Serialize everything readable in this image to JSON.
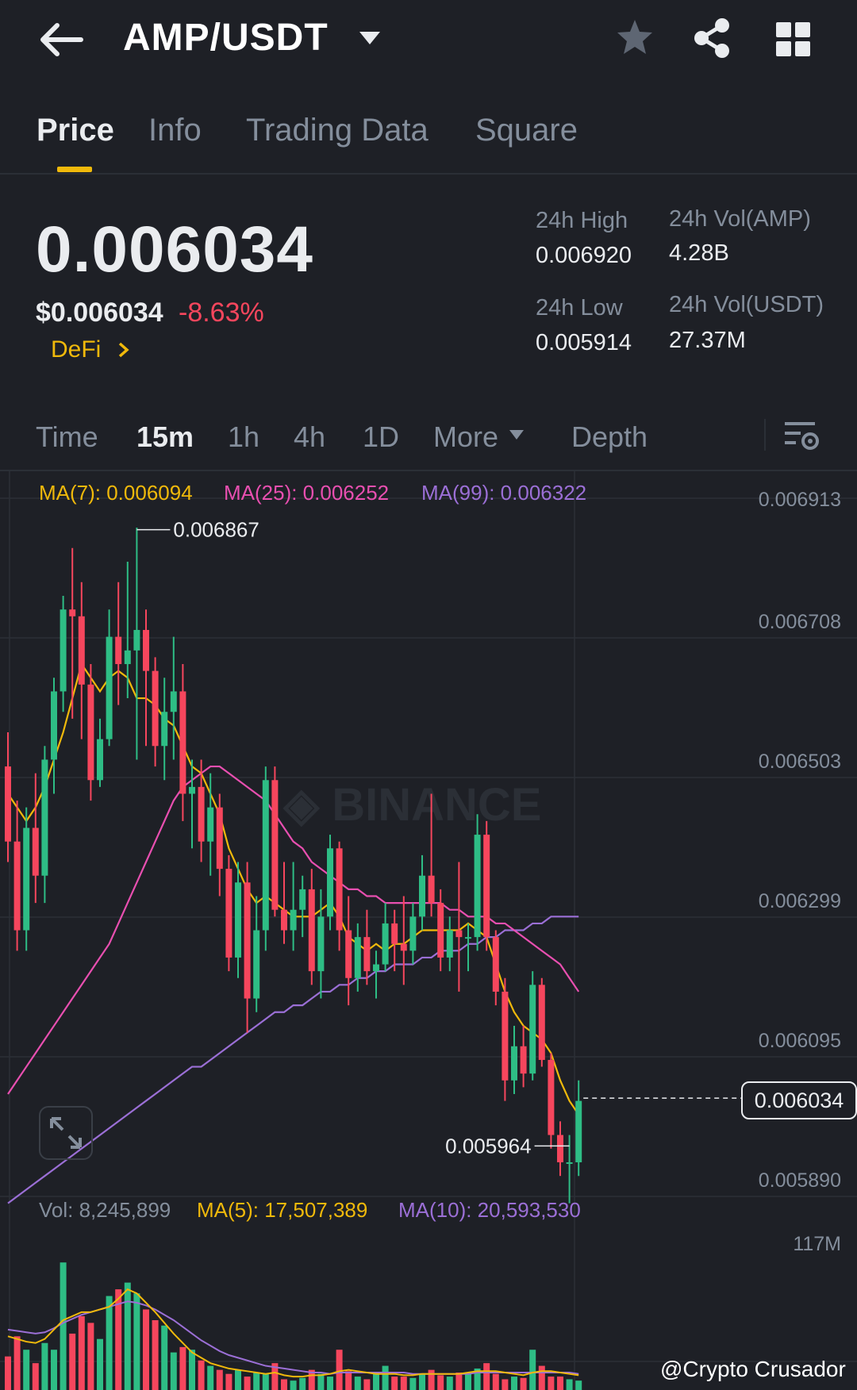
{
  "header": {
    "pair": "AMP/USDT",
    "icons": [
      "back-arrow-icon",
      "caret-down-icon",
      "star-icon",
      "share-icon",
      "grid-icon"
    ]
  },
  "tabs": [
    {
      "label": "Price",
      "active": true
    },
    {
      "label": "Info",
      "active": false
    },
    {
      "label": "Trading Data",
      "active": false
    },
    {
      "label": "Square",
      "active": false
    }
  ],
  "summary": {
    "last_price": "0.006034",
    "usd_price": "$0.006034",
    "change": "-8.63%",
    "sector": "DeFi",
    "high_label": "24h High",
    "high_value": "0.006920",
    "low_label": "24h Low",
    "low_value": "0.005914",
    "vol_amp_label": "24h Vol(AMP)",
    "vol_amp_value": "4.28B",
    "vol_usdt_label": "24h Vol(USDT)",
    "vol_usdt_value": "27.37M"
  },
  "timeframes": [
    {
      "label": "Time",
      "active": false
    },
    {
      "label": "15m",
      "active": true
    },
    {
      "label": "1h",
      "active": false
    },
    {
      "label": "4h",
      "active": false
    },
    {
      "label": "1D",
      "active": false
    },
    {
      "label": "More",
      "active": false
    },
    {
      "label": "Depth",
      "active": false
    }
  ],
  "indicators": {
    "ma7": "MA(7): 0.006094",
    "ma25": "MA(25): 0.006252",
    "ma99": "MA(99): 0.006322",
    "vol": "Vol: 8,245,899",
    "vma5": "MA(5): 17,507,389",
    "vma10": "MA(10): 20,593,530"
  },
  "colors": {
    "up": "#2ebd85",
    "down": "#f6465d",
    "ma7": "#f0b90b",
    "ma25": "#e84fb0",
    "ma99": "#9b6fd6",
    "accent": "#f0b90b"
  },
  "credit": "@Crypto Crusador",
  "chart_data": {
    "type": "candlestick",
    "y_ticks": [
      "0.006913",
      "0.006708",
      "0.006503",
      "0.006299",
      "0.006095",
      "0.005890"
    ],
    "ylim": [
      0.00589,
      0.006913
    ],
    "high_marker": "0.006867",
    "low_marker": "0.005964",
    "current_price": "0.006034",
    "volume_axis_top": "117M",
    "candles": [
      [
        0.00652,
        0.00657,
        0.00638,
        0.00641
      ],
      [
        0.00641,
        0.00647,
        0.00625,
        0.00628
      ],
      [
        0.00628,
        0.00646,
        0.00625,
        0.00643
      ],
      [
        0.00643,
        0.00651,
        0.00632,
        0.00636
      ],
      [
        0.00636,
        0.00655,
        0.00632,
        0.00653
      ],
      [
        0.00653,
        0.00665,
        0.00648,
        0.00663
      ],
      [
        0.00663,
        0.00677,
        0.0066,
        0.00675
      ],
      [
        0.00675,
        0.00684,
        0.00659,
        0.00674
      ],
      [
        0.00674,
        0.00679,
        0.00656,
        0.00664
      ],
      [
        0.00664,
        0.00667,
        0.00647,
        0.0065
      ],
      [
        0.0065,
        0.00659,
        0.00649,
        0.00656
      ],
      [
        0.00656,
        0.00675,
        0.00655,
        0.00671
      ],
      [
        0.00671,
        0.00679,
        0.00661,
        0.00667
      ],
      [
        0.00667,
        0.00682,
        0.00662,
        0.00669
      ],
      [
        0.00669,
        0.00687,
        0.00653,
        0.00672
      ],
      [
        0.00672,
        0.00675,
        0.00655,
        0.00666
      ],
      [
        0.00666,
        0.00668,
        0.00652,
        0.00655
      ],
      [
        0.00655,
        0.00665,
        0.0065,
        0.0066
      ],
      [
        0.0066,
        0.00671,
        0.00653,
        0.00663
      ],
      [
        0.00663,
        0.00667,
        0.00644,
        0.00648
      ],
      [
        0.00648,
        0.00653,
        0.0064,
        0.00649
      ],
      [
        0.00649,
        0.00653,
        0.00638,
        0.00641
      ],
      [
        0.00641,
        0.00651,
        0.00636,
        0.00646
      ],
      [
        0.00646,
        0.00648,
        0.00633,
        0.00637
      ],
      [
        0.00637,
        0.00639,
        0.00622,
        0.00624
      ],
      [
        0.00624,
        0.00638,
        0.00621,
        0.00635
      ],
      [
        0.00635,
        0.00638,
        0.00613,
        0.00618
      ],
      [
        0.00618,
        0.00633,
        0.00616,
        0.00628
      ],
      [
        0.00628,
        0.00652,
        0.00625,
        0.0065
      ],
      [
        0.0065,
        0.00652,
        0.0063,
        0.00631
      ],
      [
        0.00631,
        0.00638,
        0.00626,
        0.00628
      ],
      [
        0.00628,
        0.00638,
        0.00625,
        0.00631
      ],
      [
        0.00631,
        0.00636,
        0.00627,
        0.00634
      ],
      [
        0.00634,
        0.00637,
        0.0062,
        0.00622
      ],
      [
        0.00622,
        0.00634,
        0.00618,
        0.0063
      ],
      [
        0.0063,
        0.00642,
        0.00628,
        0.0064
      ],
      [
        0.0064,
        0.00641,
        0.00625,
        0.00628
      ],
      [
        0.00628,
        0.00633,
        0.00617,
        0.00621
      ],
      [
        0.00621,
        0.00629,
        0.00619,
        0.00627
      ],
      [
        0.00627,
        0.00631,
        0.0062,
        0.00622
      ],
      [
        0.00622,
        0.00625,
        0.00618,
        0.00623
      ],
      [
        0.00623,
        0.00632,
        0.00622,
        0.00629
      ],
      [
        0.00629,
        0.00631,
        0.00622,
        0.00626
      ],
      [
        0.00626,
        0.00633,
        0.0062,
        0.00625
      ],
      [
        0.00625,
        0.00632,
        0.00623,
        0.0063
      ],
      [
        0.0063,
        0.00639,
        0.00628,
        0.00636
      ],
      [
        0.00636,
        0.00648,
        0.0063,
        0.00632
      ],
      [
        0.00632,
        0.00634,
        0.00622,
        0.00624
      ],
      [
        0.00624,
        0.0063,
        0.00622,
        0.00628
      ],
      [
        0.00628,
        0.00638,
        0.00619,
        0.00627
      ],
      [
        0.00627,
        0.00629,
        0.00622,
        0.00627
      ],
      [
        0.00627,
        0.00645,
        0.00625,
        0.00642
      ],
      [
        0.00642,
        0.00644,
        0.00625,
        0.00627
      ],
      [
        0.00627,
        0.00628,
        0.00617,
        0.00619
      ],
      [
        0.00619,
        0.00621,
        0.00603,
        0.00606
      ],
      [
        0.00606,
        0.00614,
        0.00604,
        0.00611
      ],
      [
        0.00611,
        0.00614,
        0.00605,
        0.00607
      ],
      [
        0.00607,
        0.00622,
        0.00606,
        0.0062
      ],
      [
        0.0062,
        0.00621,
        0.00608,
        0.00609
      ],
      [
        0.00609,
        0.0061,
        0.00596,
        0.00598
      ],
      [
        0.00598,
        0.006,
        0.00592,
        0.00594
      ],
      [
        0.00594,
        0.00598,
        0.00588,
        0.00594
      ],
      [
        0.00594,
        0.00606,
        0.00592,
        0.00603
      ]
    ],
    "ma7": [
      0.00648,
      0.00646,
      0.00644,
      0.00646,
      0.00649,
      0.00653,
      0.00657,
      0.00662,
      0.00667,
      0.00665,
      0.00663,
      0.00665,
      0.00666,
      0.00665,
      0.00662,
      0.00662,
      0.00661,
      0.00659,
      0.00658,
      0.00655,
      0.00652,
      0.00651,
      0.00648,
      0.00645,
      0.0064,
      0.00637,
      0.00634,
      0.00632,
      0.00633,
      0.00632,
      0.00631,
      0.0063,
      0.0063,
      0.0063,
      0.00631,
      0.00632,
      0.0063,
      0.00627,
      0.00626,
      0.00625,
      0.00626,
      0.00625,
      0.00626,
      0.00626,
      0.00627,
      0.00628,
      0.00628,
      0.00628,
      0.00628,
      0.00628,
      0.00629,
      0.00628,
      0.00627,
      0.00623,
      0.00619,
      0.00616,
      0.00614,
      0.00613,
      0.00612,
      0.0061,
      0.00606,
      0.00603,
      0.00601
    ],
    "ma25": [
      0.00604,
      0.00606,
      0.00608,
      0.0061,
      0.00612,
      0.00614,
      0.00616,
      0.00618,
      0.0062,
      0.00622,
      0.00624,
      0.00626,
      0.00629,
      0.00632,
      0.00635,
      0.00638,
      0.00641,
      0.00644,
      0.00647,
      0.00649,
      0.0065,
      0.00651,
      0.00652,
      0.00652,
      0.00651,
      0.0065,
      0.00649,
      0.00648,
      0.00647,
      0.00645,
      0.00643,
      0.00641,
      0.0064,
      0.00638,
      0.00637,
      0.00636,
      0.00635,
      0.00634,
      0.00634,
      0.00633,
      0.00633,
      0.00632,
      0.00632,
      0.00632,
      0.00632,
      0.00632,
      0.00632,
      0.00632,
      0.00631,
      0.00631,
      0.0063,
      0.0063,
      0.0063,
      0.00629,
      0.00629,
      0.00628,
      0.00627,
      0.00626,
      0.00625,
      0.00624,
      0.00623,
      0.00621,
      0.00619
    ],
    "ma99": [
      0.00588,
      0.00589,
      0.0059,
      0.00591,
      0.00592,
      0.00593,
      0.00594,
      0.00595,
      0.00596,
      0.00597,
      0.00598,
      0.00599,
      0.006,
      0.00601,
      0.00602,
      0.00603,
      0.00604,
      0.00605,
      0.00606,
      0.00607,
      0.00608,
      0.00608,
      0.00609,
      0.0061,
      0.00611,
      0.00612,
      0.00613,
      0.00614,
      0.00615,
      0.00616,
      0.00616,
      0.00617,
      0.00617,
      0.00618,
      0.00619,
      0.00619,
      0.0062,
      0.0062,
      0.00621,
      0.00621,
      0.00622,
      0.00622,
      0.00623,
      0.00623,
      0.00623,
      0.00624,
      0.00624,
      0.00625,
      0.00625,
      0.00625,
      0.00626,
      0.00626,
      0.00627,
      0.00627,
      0.00628,
      0.00628,
      0.00628,
      0.00629,
      0.00629,
      0.0063,
      0.0063,
      0.0063,
      0.0063
    ],
    "volumes": [
      25,
      40,
      30,
      20,
      35,
      30,
      95,
      42,
      55,
      50,
      38,
      70,
      75,
      80,
      72,
      60,
      52,
      48,
      28,
      32,
      30,
      22,
      18,
      15,
      12,
      15,
      10,
      13,
      12,
      20,
      8,
      7,
      9,
      15,
      12,
      10,
      30,
      14,
      10,
      8,
      12,
      18,
      10,
      10,
      9,
      12,
      15,
      11,
      10,
      13,
      12,
      16,
      20,
      12,
      8,
      10,
      9,
      30,
      18,
      10,
      10,
      8,
      7
    ],
    "vma5": [
      40,
      38,
      36,
      35,
      38,
      45,
      52,
      55,
      58,
      58,
      60,
      62,
      68,
      75,
      72,
      65,
      58,
      50,
      42,
      35,
      28,
      24,
      20,
      18,
      16,
      15,
      14,
      13,
      12,
      13,
      11,
      10,
      10,
      11,
      11,
      12,
      14,
      15,
      14,
      13,
      12,
      12,
      12,
      11,
      11,
      12,
      12,
      12,
      12,
      12,
      13,
      14,
      14,
      14,
      13,
      12,
      11,
      13,
      14,
      14,
      13,
      12,
      11
    ],
    "vma10": [
      45,
      44,
      43,
      42,
      43,
      46,
      50,
      53,
      56,
      58,
      60,
      62,
      64,
      66,
      65,
      63,
      60,
      56,
      52,
      47,
      42,
      37,
      33,
      29,
      26,
      24,
      22,
      20,
      18,
      17,
      16,
      15,
      14,
      13,
      13,
      12,
      13,
      13,
      13,
      13,
      13,
      13,
      13,
      13,
      12,
      12,
      12,
      12,
      12,
      12,
      12,
      13,
      13,
      13,
      13,
      13,
      13,
      13,
      13,
      13,
      13,
      13,
      12
    ]
  }
}
